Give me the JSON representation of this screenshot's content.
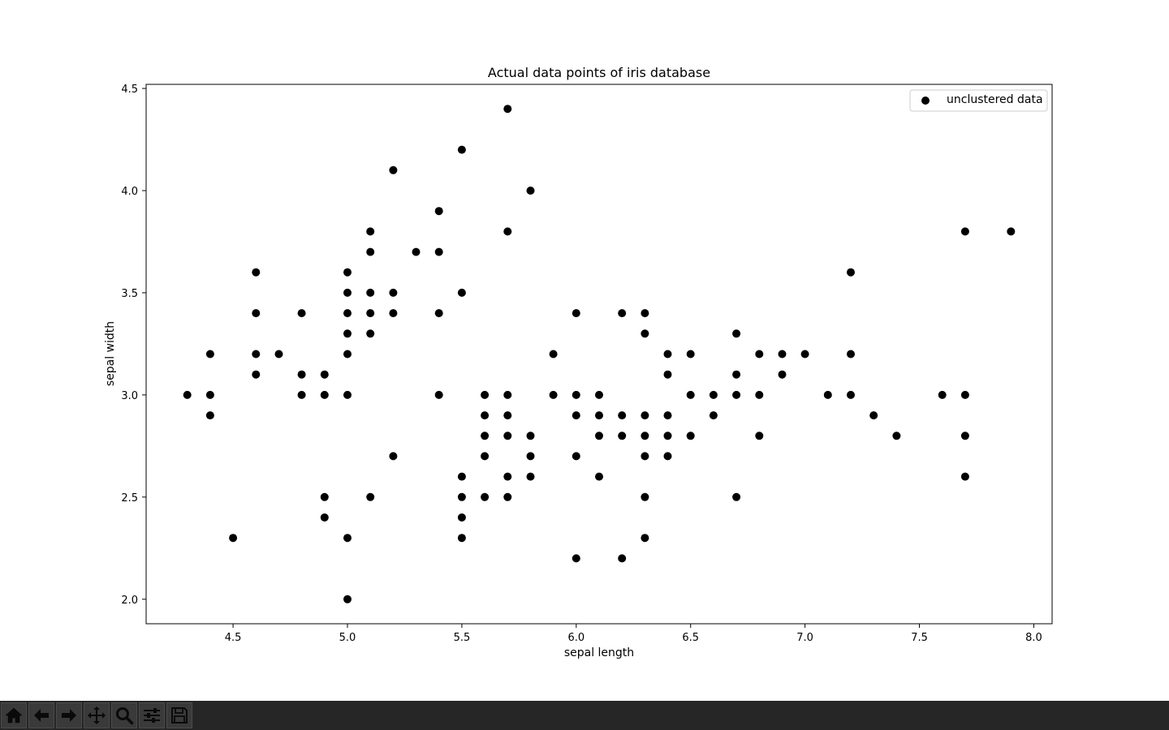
{
  "chart_data": {
    "type": "scatter",
    "title": "Actual data points of iris database",
    "xlabel": "sepal length",
    "ylabel": "sepal width",
    "xlim": [
      4.12,
      8.08
    ],
    "ylim": [
      1.88,
      4.52
    ],
    "xticks": [
      4.5,
      5.0,
      5.5,
      6.0,
      6.5,
      7.0,
      7.5,
      8.0
    ],
    "xtick_labels": [
      "4.5",
      "5.0",
      "5.5",
      "6.0",
      "6.5",
      "7.0",
      "7.5",
      "8.0"
    ],
    "yticks": [
      2.0,
      2.5,
      3.0,
      3.5,
      4.0,
      4.5
    ],
    "ytick_labels": [
      "2.0",
      "2.5",
      "3.0",
      "3.5",
      "4.0",
      "4.5"
    ],
    "grid": false,
    "legend_position": "top-right",
    "series": [
      {
        "name": "unclustered data",
        "color": "#000000",
        "points": [
          [
            4.3,
            3.0
          ],
          [
            4.4,
            3.2
          ],
          [
            4.4,
            3.0
          ],
          [
            4.4,
            2.9
          ],
          [
            4.5,
            2.3
          ],
          [
            4.6,
            3.6
          ],
          [
            4.6,
            3.4
          ],
          [
            4.6,
            3.2
          ],
          [
            4.6,
            3.1
          ],
          [
            4.7,
            3.2
          ],
          [
            4.8,
            3.4
          ],
          [
            4.8,
            3.1
          ],
          [
            4.8,
            3.0
          ],
          [
            4.9,
            3.1
          ],
          [
            4.9,
            3.0
          ],
          [
            4.9,
            2.5
          ],
          [
            4.9,
            2.4
          ],
          [
            5.0,
            3.6
          ],
          [
            5.0,
            3.5
          ],
          [
            5.0,
            3.4
          ],
          [
            5.0,
            3.3
          ],
          [
            5.0,
            3.2
          ],
          [
            5.0,
            3.0
          ],
          [
            5.0,
            2.3
          ],
          [
            5.0,
            2.0
          ],
          [
            5.1,
            3.8
          ],
          [
            5.1,
            3.7
          ],
          [
            5.1,
            3.5
          ],
          [
            5.1,
            3.4
          ],
          [
            5.1,
            3.3
          ],
          [
            5.1,
            2.5
          ],
          [
            5.2,
            4.1
          ],
          [
            5.2,
            3.5
          ],
          [
            5.2,
            3.4
          ],
          [
            5.2,
            2.7
          ],
          [
            5.3,
            3.7
          ],
          [
            5.4,
            3.9
          ],
          [
            5.4,
            3.7
          ],
          [
            5.4,
            3.4
          ],
          [
            5.4,
            3.0
          ],
          [
            5.5,
            4.2
          ],
          [
            5.5,
            3.5
          ],
          [
            5.5,
            2.6
          ],
          [
            5.5,
            2.5
          ],
          [
            5.5,
            2.4
          ],
          [
            5.5,
            2.3
          ],
          [
            5.6,
            3.0
          ],
          [
            5.6,
            2.9
          ],
          [
            5.6,
            2.8
          ],
          [
            5.6,
            2.7
          ],
          [
            5.6,
            2.5
          ],
          [
            5.7,
            4.4
          ],
          [
            5.7,
            3.8
          ],
          [
            5.7,
            3.0
          ],
          [
            5.7,
            2.9
          ],
          [
            5.7,
            2.8
          ],
          [
            5.7,
            2.6
          ],
          [
            5.7,
            2.5
          ],
          [
            5.8,
            4.0
          ],
          [
            5.8,
            2.8
          ],
          [
            5.8,
            2.7
          ],
          [
            5.8,
            2.6
          ],
          [
            5.9,
            3.2
          ],
          [
            5.9,
            3.0
          ],
          [
            6.0,
            3.4
          ],
          [
            6.0,
            3.0
          ],
          [
            6.0,
            2.9
          ],
          [
            6.0,
            2.7
          ],
          [
            6.0,
            2.2
          ],
          [
            6.1,
            3.0
          ],
          [
            6.1,
            2.9
          ],
          [
            6.1,
            2.8
          ],
          [
            6.1,
            2.6
          ],
          [
            6.2,
            3.4
          ],
          [
            6.2,
            2.9
          ],
          [
            6.2,
            2.8
          ],
          [
            6.2,
            2.2
          ],
          [
            6.3,
            3.4
          ],
          [
            6.3,
            3.3
          ],
          [
            6.3,
            2.9
          ],
          [
            6.3,
            2.8
          ],
          [
            6.3,
            2.7
          ],
          [
            6.3,
            2.5
          ],
          [
            6.3,
            2.3
          ],
          [
            6.4,
            3.2
          ],
          [
            6.4,
            3.1
          ],
          [
            6.4,
            2.9
          ],
          [
            6.4,
            2.8
          ],
          [
            6.4,
            2.7
          ],
          [
            6.5,
            3.2
          ],
          [
            6.5,
            3.0
          ],
          [
            6.5,
            2.8
          ],
          [
            6.6,
            3.0
          ],
          [
            6.6,
            2.9
          ],
          [
            6.7,
            3.3
          ],
          [
            6.7,
            3.1
          ],
          [
            6.7,
            3.0
          ],
          [
            6.7,
            2.5
          ],
          [
            6.8,
            3.2
          ],
          [
            6.8,
            3.0
          ],
          [
            6.8,
            2.8
          ],
          [
            6.9,
            3.2
          ],
          [
            6.9,
            3.1
          ],
          [
            7.0,
            3.2
          ],
          [
            7.1,
            3.0
          ],
          [
            7.2,
            3.6
          ],
          [
            7.2,
            3.2
          ],
          [
            7.2,
            3.0
          ],
          [
            7.3,
            2.9
          ],
          [
            7.4,
            2.8
          ],
          [
            7.6,
            3.0
          ],
          [
            7.7,
            3.8
          ],
          [
            7.7,
            3.0
          ],
          [
            7.7,
            2.8
          ],
          [
            7.7,
            2.6
          ],
          [
            7.9,
            3.8
          ]
        ]
      }
    ]
  },
  "toolbar": {
    "buttons": [
      {
        "name": "home-button",
        "icon": "home-icon"
      },
      {
        "name": "back-button",
        "icon": "arrow-left-icon"
      },
      {
        "name": "forward-button",
        "icon": "arrow-right-icon"
      },
      {
        "name": "pan-button",
        "icon": "move-icon"
      },
      {
        "name": "zoom-button",
        "icon": "magnifier-icon"
      },
      {
        "name": "configure-subplots-button",
        "icon": "sliders-icon"
      },
      {
        "name": "save-button",
        "icon": "floppy-disk-icon"
      }
    ]
  }
}
